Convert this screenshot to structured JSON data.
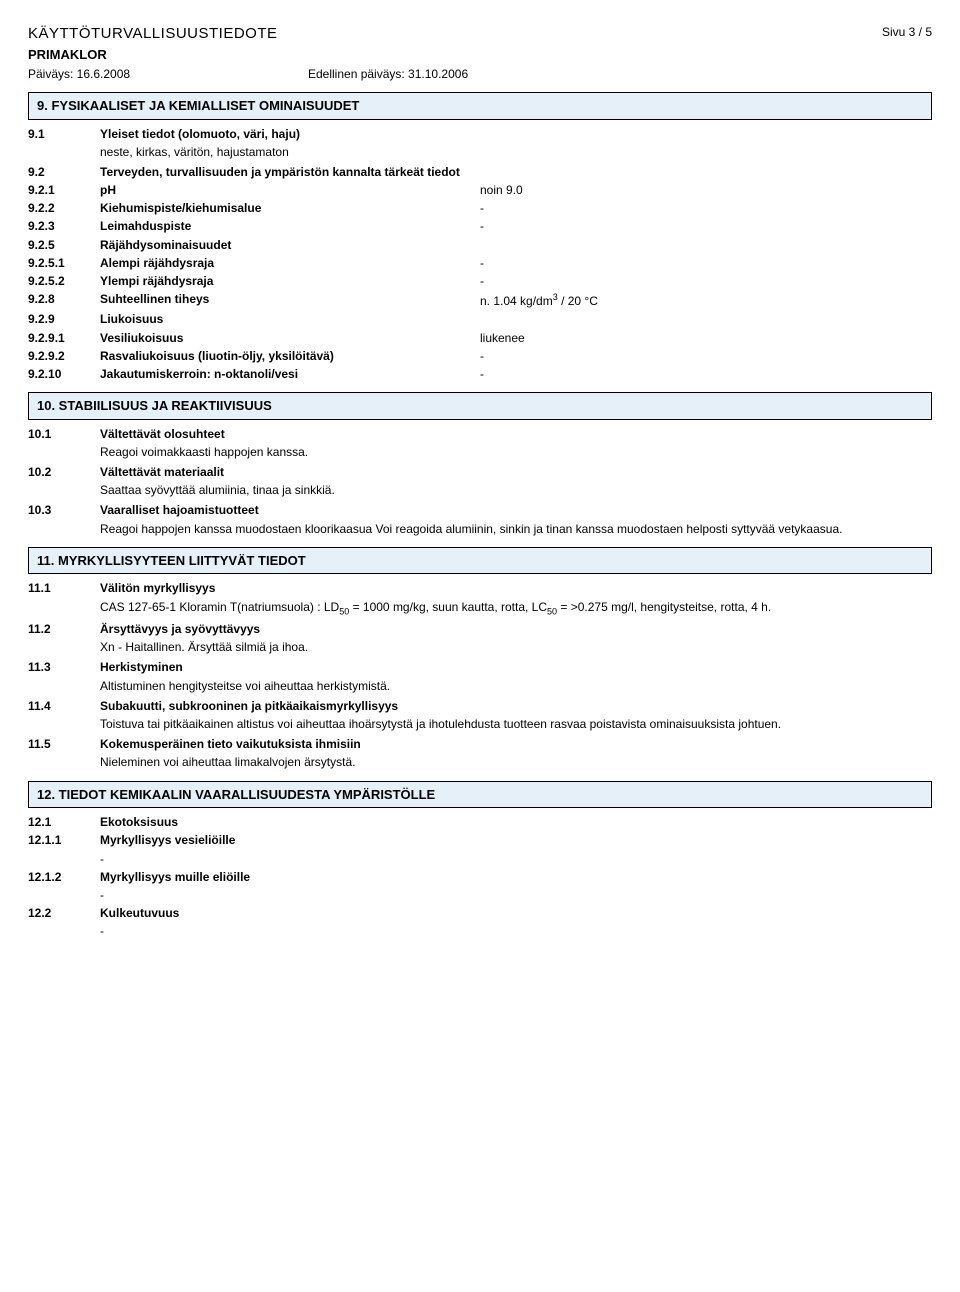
{
  "header": {
    "docTitle": "KÄYTTÖTURVALLISUUSTIEDOTE",
    "pageNum": "Sivu  3 / 5",
    "product": "PRIMAKLOR",
    "date1": "Päiväys: 16.6.2008",
    "date2": "Edellinen päiväys: 31.10.2006"
  },
  "s9": {
    "title": "9. FYSIKAALISET JA KEMIALLISET OMINAISUUDET",
    "r9_1_num": "9.1",
    "r9_1_lbl": "Yleiset tiedot (olomuoto, väri, haju)",
    "r9_1_body": "neste, kirkas, väritön, hajustamaton",
    "r9_2_num": "9.2",
    "r9_2_lbl": "Terveyden, turvallisuuden ja ympäristön kannalta tärkeät tiedot",
    "r9_2_1_num": "9.2.1",
    "r9_2_1_lbl": "pH",
    "r9_2_1_val": "noin 9.0",
    "r9_2_2_num": "9.2.2",
    "r9_2_2_lbl": "Kiehumispiste/kiehumisalue",
    "r9_2_2_val": "-",
    "r9_2_3_num": "9.2.3",
    "r9_2_3_lbl": "Leimahduspiste",
    "r9_2_3_val": "-",
    "r9_2_5_num": "9.2.5",
    "r9_2_5_lbl": "Räjähdysominaisuudet",
    "r9_2_5_1_num": "9.2.5.1",
    "r9_2_5_1_lbl": "Alempi räjähdysraja",
    "r9_2_5_1_val": "-",
    "r9_2_5_2_num": "9.2.5.2",
    "r9_2_5_2_lbl": "Ylempi räjähdysraja",
    "r9_2_5_2_val": "-",
    "r9_2_8_num": "9.2.8",
    "r9_2_8_lbl": "Suhteellinen tiheys",
    "r9_2_8_val_pre": "n. 1.04 kg/dm",
    "r9_2_8_sup": "3",
    "r9_2_8_val_post": " / 20 °C",
    "r9_2_9_num": "9.2.9",
    "r9_2_9_lbl": "Liukoisuus",
    "r9_2_9_1_num": "9.2.9.1",
    "r9_2_9_1_lbl": "Vesiliukoisuus",
    "r9_2_9_1_val": "liukenee",
    "r9_2_9_2_num": "9.2.9.2",
    "r9_2_9_2_lbl": "Rasvaliukoisuus (liuotin-öljy, yksilöitävä)",
    "r9_2_9_2_val": "-",
    "r9_2_10_num": "9.2.10",
    "r9_2_10_lbl": "Jakautumiskerroin: n-oktanoli/vesi",
    "r9_2_10_val": "-"
  },
  "s10": {
    "title": "10. STABIILISUUS JA REAKTIIVISUUS",
    "r10_1_num": "10.1",
    "r10_1_lbl": "Vältettävät olosuhteet",
    "r10_1_body": "Reagoi voimakkaasti happojen kanssa.",
    "r10_2_num": "10.2",
    "r10_2_lbl": "Vältettävät materiaalit",
    "r10_2_body": "Saattaa syövyttää alumiinia, tinaa ja sinkkiä.",
    "r10_3_num": "10.3",
    "r10_3_lbl": "Vaaralliset hajoamistuotteet",
    "r10_3_body": "Reagoi happojen kanssa muodostaen kloorikaasua Voi reagoida alumiinin, sinkin ja tinan kanssa muodostaen helposti syttyvää vetykaasua."
  },
  "s11": {
    "title": "11. MYRKYLLISYYTEEN LIITTYVÄT TIEDOT",
    "r11_1_num": "11.1",
    "r11_1_lbl": "Välitön myrkyllisyys",
    "r11_1_body_a": "CAS 127-65-1  Kloramin T(natriumsuola) : LD",
    "r11_1_sub1": "50",
    "r11_1_body_b": " = 1000 mg/kg, suun kautta, rotta, LC",
    "r11_1_sub2": "50",
    "r11_1_body_c": " = >0.275 mg/l, hengitysteitse, rotta, 4 h.",
    "r11_2_num": "11.2",
    "r11_2_lbl": "Ärsyttävyys ja syövyttävyys",
    "r11_2_body": "Xn - Haitallinen. Ärsyttää silmiä ja ihoa.",
    "r11_3_num": "11.3",
    "r11_3_lbl": "Herkistyminen",
    "r11_3_body": "Altistuminen hengitysteitse voi aiheuttaa herkistymistä.",
    "r11_4_num": "11.4",
    "r11_4_lbl": "Subakuutti, subkrooninen ja pitkäaikaismyrkyllisyys",
    "r11_4_body": "Toistuva tai pitkäaikainen altistus voi aiheuttaa ihoärsytystä ja ihotulehdusta tuotteen rasvaa poistavista ominaisuuksista johtuen.",
    "r11_5_num": "11.5",
    "r11_5_lbl": "Kokemusperäinen tieto vaikutuksista ihmisiin",
    "r11_5_body": "Nieleminen voi aiheuttaa limakalvojen ärsytystä."
  },
  "s12": {
    "title": "12. TIEDOT KEMIKAALIN VAARALLISUUDESTA YMPÄRISTÖLLE",
    "r12_1_num": "12.1",
    "r12_1_lbl": "Ekotoksisuus",
    "r12_1_1_num": "12.1.1",
    "r12_1_1_lbl": "Myrkyllisyys vesieliöille",
    "dash": "-",
    "r12_1_2_num": "12.1.2",
    "r12_1_2_lbl": "Myrkyllisyys muille eliöille",
    "r12_2_num": "12.2",
    "r12_2_lbl": "Kulkeutuvuus"
  }
}
